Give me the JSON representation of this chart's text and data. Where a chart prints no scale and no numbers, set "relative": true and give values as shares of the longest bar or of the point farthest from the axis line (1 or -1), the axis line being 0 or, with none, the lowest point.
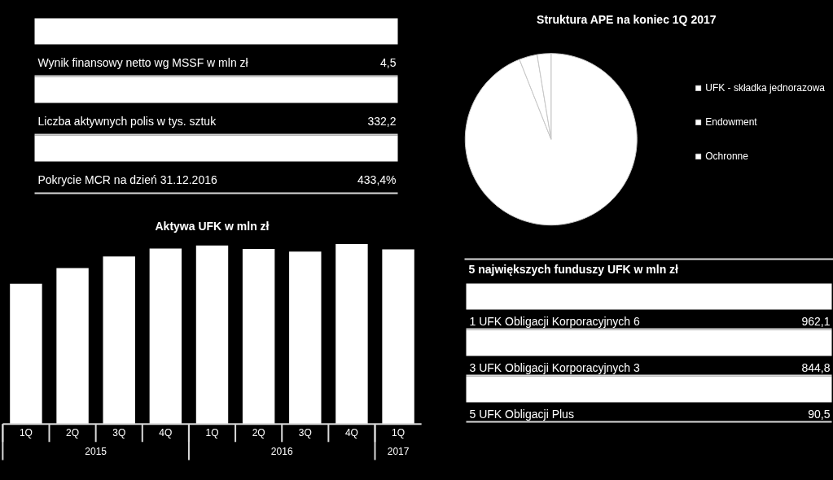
{
  "chart_data": [
    {
      "type": "other",
      "categories": [
        "Wynik finansowy netto wg MSSF w mln zł",
        "Liczba aktywnych polis w tys. sztuk",
        "Pokrycie MCR na dzień 31.12.2016"
      ],
      "values": [
        4.5,
        332.2,
        433.4
      ],
      "value_labels": [
        "4,5",
        "332,2",
        "433,4%"
      ]
    },
    {
      "type": "pie",
      "title": "Struktura APE na koniec 1Q 2017",
      "categories": [
        "UFK - składka jednorazowa",
        "Endowment",
        "Ochronne"
      ],
      "values": [
        94,
        3.4,
        2.6
      ],
      "colors": [
        "#ffffff",
        "#ffffff",
        "#ffffff"
      ],
      "legend": "right"
    },
    {
      "type": "bar",
      "title": "Aktywa UFK w mln zł",
      "relative": true,
      "categories": [
        "1Q",
        "2Q",
        "3Q",
        "4Q",
        "1Q",
        "2Q",
        "3Q",
        "4Q",
        "1Q"
      ],
      "values": [
        0.78,
        0.867,
        0.931,
        0.976,
        0.992,
        0.973,
        0.958,
        1,
        0.971
      ],
      "color": "#ffffff",
      "annotations": [
        "2015",
        "2016",
        "2017"
      ]
    },
    {
      "type": "other",
      "title": "5 największych funduszy UFK w mln zł",
      "categories": [
        "1  UFK Obligacji  Korporacyjnych 6",
        "3  UFK Obligacji  Korporacyjnych 3",
        "5  UFK Obligacji  Plus"
      ],
      "values": [
        962.1,
        844.8,
        90.5
      ],
      "value_labels": [
        "962,1",
        "844,8",
        "90,5"
      ]
    }
  ]
}
